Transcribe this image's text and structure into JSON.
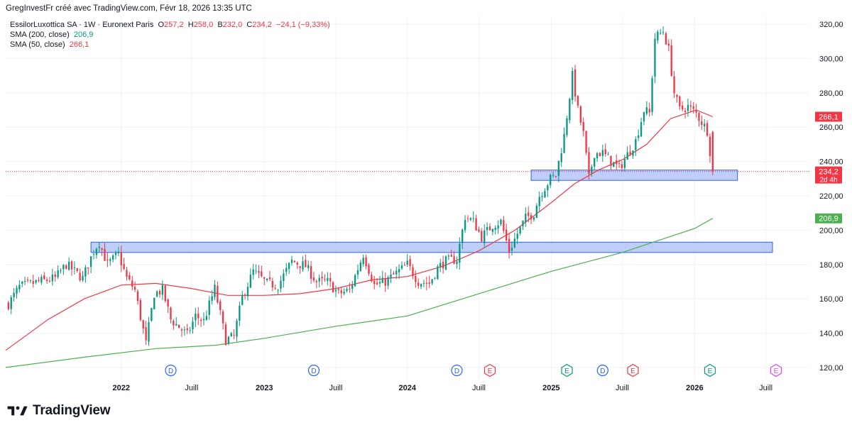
{
  "header": {
    "author_line": "GregInvestFr créé avec TradingView.com, Févr 18, 2026 13:35 UTC"
  },
  "legend": {
    "symbol": "EssilorLuxottica SA · 1W · Euronext Paris",
    "o_label": "O",
    "o_value": "257,2",
    "h_label": "H",
    "h_value": "258,0",
    "b_label": "B",
    "b_value": "232,0",
    "c_label": "C",
    "c_value": "234,2",
    "change": "−24,1 (−9,33%)",
    "sma200_label": "SMA (200, close)",
    "sma200_value": "206,9",
    "sma50_label": "SMA (50, close)",
    "sma50_value": "266,1"
  },
  "brand": {
    "name": "TradingView",
    "logo_icon": "tradingview-logo-icon"
  },
  "colors": {
    "up": "#089981",
    "down": "#f23645",
    "sma50": "#f23645",
    "sma200": "#4caf50",
    "zone_fill": "#a9bdf5",
    "zone_stroke": "#2962ff",
    "grid": "#f0f3fa"
  },
  "chart_data": {
    "type": "candlestick",
    "timeframe": "1W",
    "y_ticks": [
      "120,00",
      "140,00",
      "160,00",
      "180,00",
      "200,00",
      "220,00",
      "240,00",
      "260,00",
      "280,00",
      "300,00",
      "320,00"
    ],
    "ylim": [
      115,
      325
    ],
    "x_ticks": [
      {
        "label": "2022",
        "date": "2022-01-03"
      },
      {
        "label": "Juill",
        "date": "2022-07-01"
      },
      {
        "label": "2023",
        "date": "2023-01-02"
      },
      {
        "label": "Juill",
        "date": "2023-07-03"
      },
      {
        "label": "2024",
        "date": "2024-01-01"
      },
      {
        "label": "Juill",
        "date": "2024-07-01"
      },
      {
        "label": "2025",
        "date": "2025-01-01"
      },
      {
        "label": "Juill",
        "date": "2025-07-01"
      },
      {
        "label": "2026",
        "date": "2026-01-01"
      },
      {
        "label": "Juill",
        "date": "2026-07-01"
      }
    ],
    "xlim": [
      "2021-03-15",
      "2026-10-20"
    ],
    "price_path": [
      [
        "2021-03-22",
        157
      ],
      [
        "2021-04-19",
        167
      ],
      [
        "2021-06-07",
        170
      ],
      [
        "2021-07-19",
        172
      ],
      [
        "2021-08-16",
        180
      ],
      [
        "2021-09-27",
        172
      ],
      [
        "2021-10-25",
        188
      ],
      [
        "2021-11-08",
        193
      ],
      [
        "2021-11-29",
        180
      ],
      [
        "2021-12-27",
        186
      ],
      [
        "2022-01-17",
        172
      ],
      [
        "2022-02-07",
        165
      ],
      [
        "2022-03-07",
        134
      ],
      [
        "2022-03-28",
        163
      ],
      [
        "2022-04-18",
        165
      ],
      [
        "2022-05-09",
        148
      ],
      [
        "2022-06-20",
        139
      ],
      [
        "2022-07-11",
        150
      ],
      [
        "2022-08-01",
        147
      ],
      [
        "2022-08-29",
        166
      ],
      [
        "2022-09-26",
        136
      ],
      [
        "2022-10-17",
        138
      ],
      [
        "2022-11-07",
        161
      ],
      [
        "2022-12-05",
        176
      ],
      [
        "2023-01-09",
        169
      ],
      [
        "2023-02-06",
        168
      ],
      [
        "2023-03-13",
        182
      ],
      [
        "2023-04-17",
        179
      ],
      [
        "2023-05-15",
        170
      ],
      [
        "2023-06-12",
        170
      ],
      [
        "2023-07-10",
        163
      ],
      [
        "2023-08-07",
        165
      ],
      [
        "2023-09-11",
        186
      ],
      [
        "2023-10-09",
        168
      ],
      [
        "2023-11-06",
        170
      ],
      [
        "2023-12-04",
        175
      ],
      [
        "2024-01-01",
        180
      ],
      [
        "2024-01-29",
        170
      ],
      [
        "2024-02-26",
        169
      ],
      [
        "2024-03-18",
        178
      ],
      [
        "2024-04-08",
        182
      ],
      [
        "2024-05-06",
        183
      ],
      [
        "2024-05-27",
        208
      ],
      [
        "2024-06-17",
        205
      ],
      [
        "2024-07-08",
        196
      ],
      [
        "2024-08-05",
        203
      ],
      [
        "2024-08-26",
        205
      ],
      [
        "2024-09-16",
        188
      ],
      [
        "2024-10-07",
        198
      ],
      [
        "2024-10-28",
        207
      ],
      [
        "2024-11-18",
        210
      ],
      [
        "2024-12-02",
        220
      ],
      [
        "2024-12-30",
        230
      ],
      [
        "2025-01-13",
        232
      ],
      [
        "2025-02-03",
        255
      ],
      [
        "2025-02-24",
        290
      ],
      [
        "2025-03-10",
        270
      ],
      [
        "2025-03-24",
        256
      ],
      [
        "2025-04-07",
        230
      ],
      [
        "2025-04-21",
        245
      ],
      [
        "2025-05-12",
        245
      ],
      [
        "2025-06-02",
        240
      ],
      [
        "2025-06-23",
        236
      ],
      [
        "2025-07-14",
        244
      ],
      [
        "2025-08-04",
        252
      ],
      [
        "2025-08-25",
        270
      ],
      [
        "2025-09-08",
        268
      ],
      [
        "2025-09-22",
        312
      ],
      [
        "2025-10-13",
        316
      ],
      [
        "2025-10-27",
        305
      ],
      [
        "2025-11-10",
        280
      ],
      [
        "2025-11-24",
        270
      ],
      [
        "2025-12-15",
        272
      ],
      [
        "2026-01-05",
        268
      ],
      [
        "2026-01-19",
        263
      ],
      [
        "2026-02-02",
        258
      ],
      [
        "2026-02-16",
        234.2
      ]
    ],
    "sma50_path": [
      [
        "2021-03-15",
        130
      ],
      [
        "2021-07-01",
        148
      ],
      [
        "2021-10-01",
        160
      ],
      [
        "2022-01-03",
        168
      ],
      [
        "2022-04-01",
        169
      ],
      [
        "2022-07-01",
        166
      ],
      [
        "2022-10-01",
        162
      ],
      [
        "2023-01-02",
        162
      ],
      [
        "2023-04-03",
        163
      ],
      [
        "2023-07-03",
        166
      ],
      [
        "2023-10-02",
        171
      ],
      [
        "2024-01-01",
        173
      ],
      [
        "2024-04-01",
        179
      ],
      [
        "2024-07-01",
        188
      ],
      [
        "2024-10-01",
        200
      ],
      [
        "2025-01-01",
        216
      ],
      [
        "2025-03-01",
        227
      ],
      [
        "2025-05-01",
        235
      ],
      [
        "2025-07-01",
        241
      ],
      [
        "2025-09-01",
        250
      ],
      [
        "2025-11-01",
        265
      ],
      [
        "2026-01-05",
        270
      ],
      [
        "2026-02-16",
        266.1
      ]
    ],
    "sma200_path": [
      [
        "2021-03-15",
        120
      ],
      [
        "2021-10-01",
        126
      ],
      [
        "2022-04-01",
        131
      ],
      [
        "2022-09-01",
        133
      ],
      [
        "2023-01-02",
        137
      ],
      [
        "2023-07-03",
        144
      ],
      [
        "2024-01-01",
        150
      ],
      [
        "2024-07-01",
        163
      ],
      [
        "2025-01-01",
        176
      ],
      [
        "2025-07-01",
        187
      ],
      [
        "2026-01-01",
        201
      ],
      [
        "2026-02-16",
        206.9
      ]
    ],
    "zones": [
      {
        "from": "2021-10-18",
        "to": "2026-10-20",
        "low": 187,
        "high": 193
      },
      {
        "from": "2024-11-11",
        "to": "2026-04-20",
        "low": 229,
        "high": 235
      }
    ],
    "last_price_line": 234.2,
    "price_labels": [
      {
        "text": "266,1",
        "value": 266.1,
        "color": "#f23645"
      },
      {
        "text": "234,2",
        "sub": "2d 4h",
        "value": 234.2,
        "color": "#f23645"
      },
      {
        "text": "206,9",
        "value": 206.9,
        "color": "#4caf50"
      }
    ],
    "events": [
      {
        "letter": "D",
        "date": "2022-05-09",
        "color": "#2962ff"
      },
      {
        "letter": "D",
        "date": "2023-05-08",
        "color": "#2962ff"
      },
      {
        "letter": "D",
        "date": "2024-05-06",
        "color": "#2962ff"
      },
      {
        "letter": "E",
        "date": "2024-07-29",
        "color": "#f23645"
      },
      {
        "letter": "E",
        "date": "2025-02-10",
        "color": "#089981"
      },
      {
        "letter": "D",
        "date": "2025-05-12",
        "color": "#2962ff"
      },
      {
        "letter": "E",
        "date": "2025-07-28",
        "color": "#f23645"
      },
      {
        "letter": "E",
        "date": "2026-02-09",
        "color": "#089981"
      },
      {
        "letter": "E",
        "date": "2026-07-27",
        "color": "#e040fb"
      }
    ],
    "grid": true
  }
}
